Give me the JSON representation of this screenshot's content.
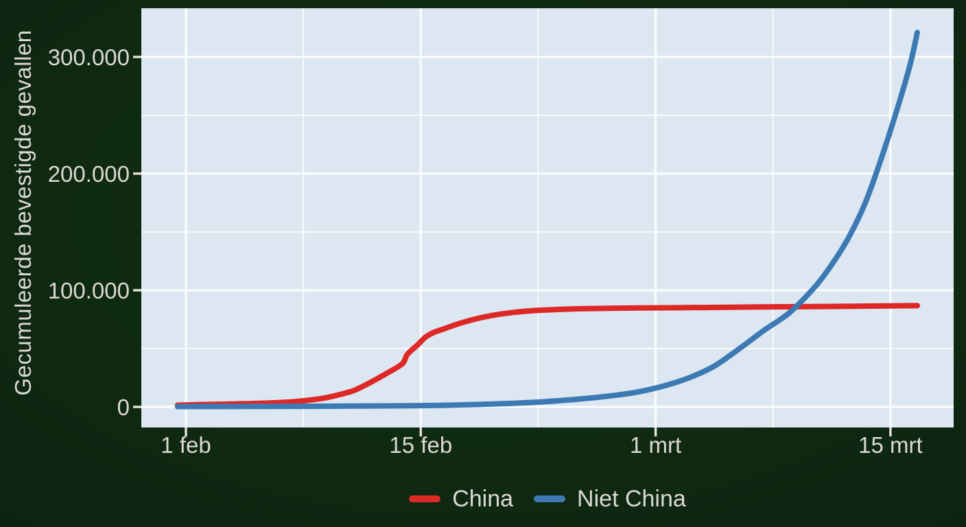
{
  "colors": {
    "background": "#0d2511",
    "panel_background": "#dce7f1",
    "grid_major": "#fbfdfe",
    "grid_minor": "#ffffffc0",
    "tick": "#e2dfd7",
    "text": "#dcd9d0",
    "china": "#de2826",
    "niet_china": "#3d7ab4"
  },
  "chart_data": {
    "type": "line",
    "title": "",
    "xlabel": "",
    "ylabel": "Gecumuleerde bevestigde gevallen",
    "x_unit": "days since 1 feb",
    "x_domain": [
      -2.6,
      45.7
    ],
    "y_domain": [
      -17600,
      341800
    ],
    "grid": "on",
    "legend_position": "bottom",
    "x_ticks": [
      {
        "day": 0,
        "label": "1 feb"
      },
      {
        "day": 14,
        "label": "15 feb"
      },
      {
        "day": 28,
        "label": "1 mrt"
      },
      {
        "day": 42,
        "label": "15 mrt"
      }
    ],
    "x_minor_gridline_days": [
      7,
      21,
      35
    ],
    "y_ticks": [
      {
        "value": 0,
        "label": "0"
      },
      {
        "value": 100000,
        "label": "100.000"
      },
      {
        "value": 200000,
        "label": "200.000"
      },
      {
        "value": 300000,
        "label": "300.000"
      }
    ],
    "y_minor_gridline_values": [
      50000,
      150000,
      250000
    ],
    "series": [
      {
        "name": "China",
        "color": "#de2826",
        "points": [
          [
            -0.5,
            1500
          ],
          [
            1,
            2000
          ],
          [
            3,
            2600
          ],
          [
            5,
            3400
          ],
          [
            6.5,
            4600
          ],
          [
            8,
            7000
          ],
          [
            9,
            10000
          ],
          [
            10,
            14000
          ],
          [
            11,
            21000
          ],
          [
            12,
            29000
          ],
          [
            12.9,
            37000
          ],
          [
            13.2,
            45000
          ],
          [
            13.8,
            53000
          ],
          [
            14.3,
            60000
          ],
          [
            14.8,
            64000
          ],
          [
            15.3,
            66500
          ],
          [
            16.3,
            71500
          ],
          [
            17.3,
            75500
          ],
          [
            18.3,
            78500
          ],
          [
            19.5,
            81000
          ],
          [
            21,
            82800
          ],
          [
            23,
            84000
          ],
          [
            25,
            84500
          ],
          [
            27,
            84800
          ],
          [
            30,
            85100
          ],
          [
            33,
            85500
          ],
          [
            36,
            85900
          ],
          [
            39,
            86200
          ],
          [
            43.6,
            86800
          ]
        ]
      },
      {
        "name": "Niet China",
        "color": "#3d7ab4",
        "points": [
          [
            -0.5,
            300
          ],
          [
            2,
            350
          ],
          [
            5,
            450
          ],
          [
            8,
            600
          ],
          [
            11,
            800
          ],
          [
            13.5,
            1000
          ],
          [
            15.5,
            1400
          ],
          [
            17.5,
            2100
          ],
          [
            19.5,
            3100
          ],
          [
            21.5,
            4600
          ],
          [
            23.5,
            6800
          ],
          [
            25.5,
            9800
          ],
          [
            27,
            13000
          ],
          [
            28.5,
            18000
          ],
          [
            30,
            25000
          ],
          [
            31.5,
            35000
          ],
          [
            33,
            50000
          ],
          [
            34.5,
            66000
          ],
          [
            36,
            81000
          ],
          [
            37.5,
            103000
          ],
          [
            38.5,
            122000
          ],
          [
            39.5,
            145000
          ],
          [
            40.5,
            175000
          ],
          [
            41.5,
            215000
          ],
          [
            42.5,
            260000
          ],
          [
            43.2,
            295000
          ],
          [
            43.6,
            321000
          ]
        ]
      }
    ]
  },
  "legend": {
    "items": [
      {
        "label": "China"
      },
      {
        "label": "Niet China"
      }
    ]
  }
}
